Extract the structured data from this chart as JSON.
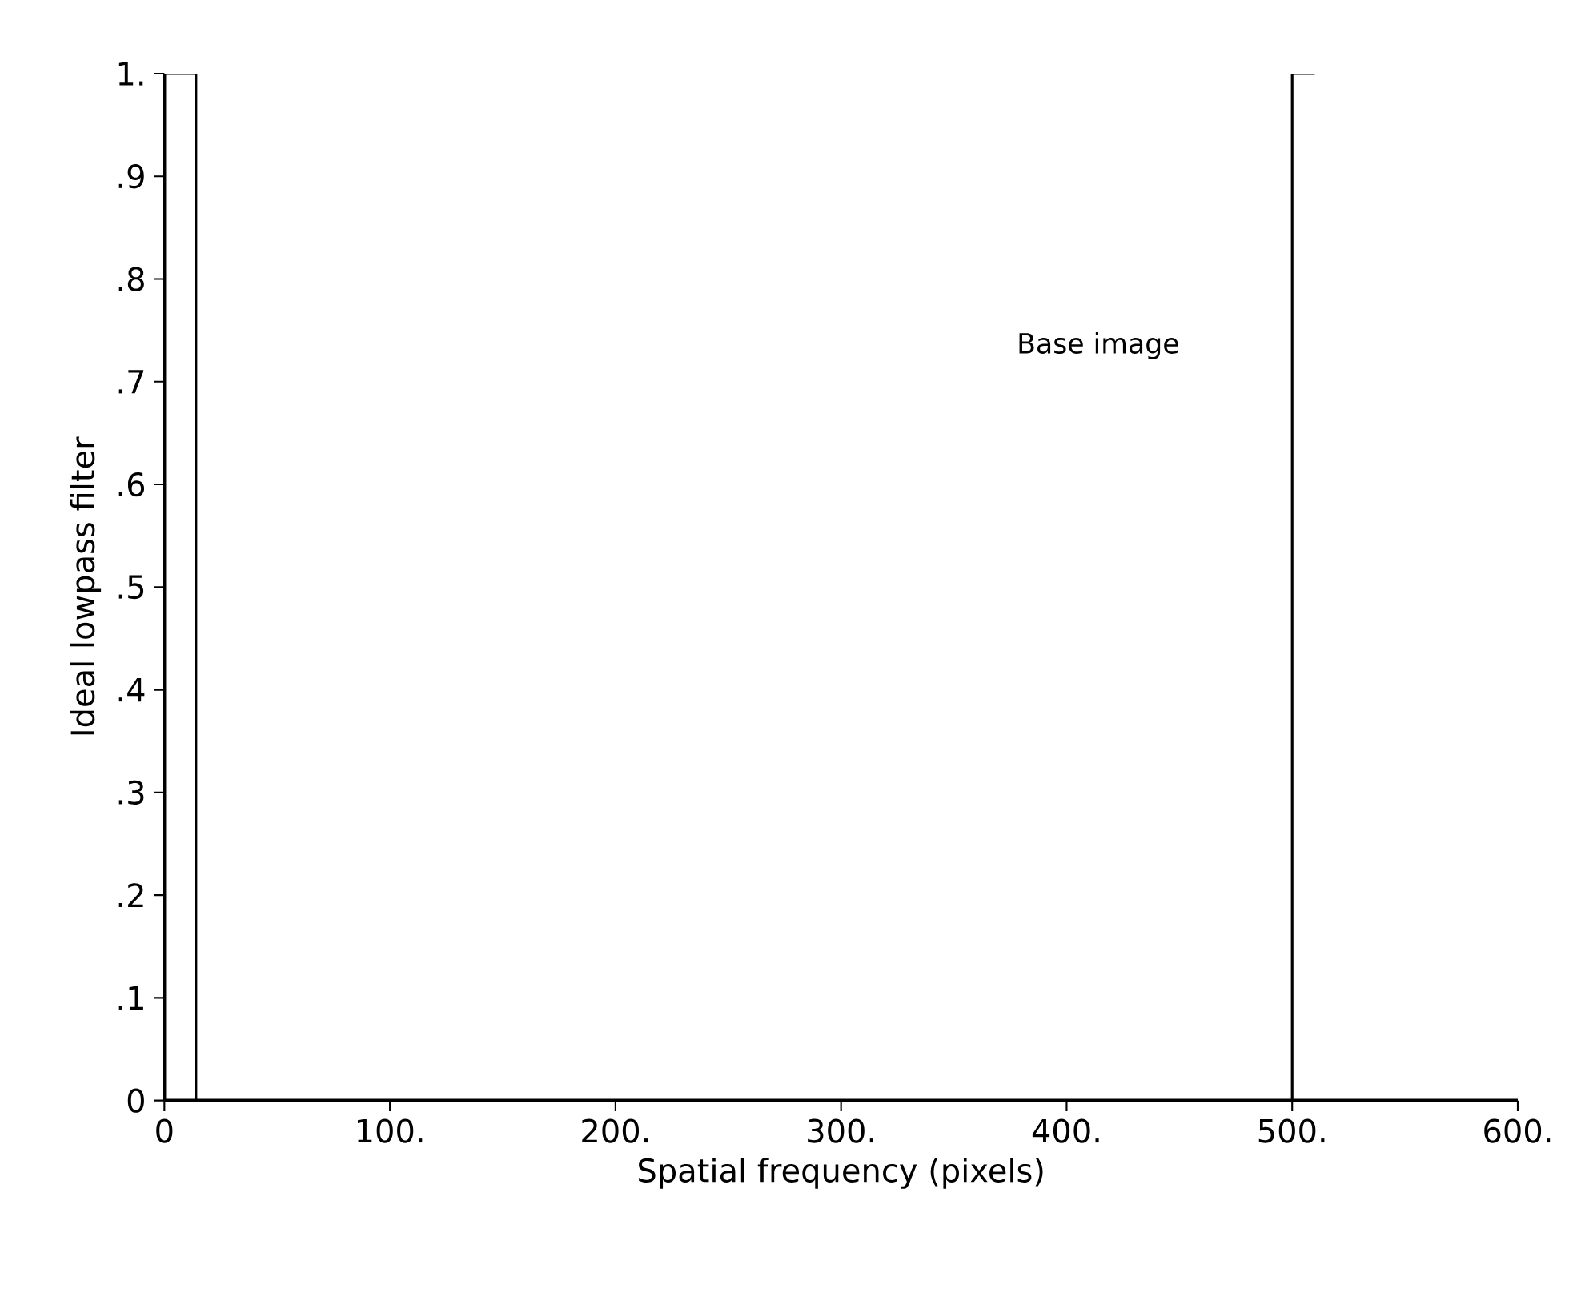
{
  "chart_data": {
    "type": "line",
    "xlabel": "Spatial frequency (pixels)",
    "ylabel": "Ideal lowpass filter",
    "annotations": [
      "Base image"
    ],
    "x": [
      0,
      14,
      14,
      500,
      500,
      510
    ],
    "series": [
      {
        "color": "#000000",
        "values": [
          1,
          1,
          0,
          0,
          1,
          1
        ]
      }
    ],
    "xlim": [
      0,
      600
    ],
    "ylim": [
      0,
      1
    ],
    "xticks": [
      0,
      {
        "value": 100,
        "label": "100."
      },
      {
        "value": 200,
        "label": "200."
      },
      {
        "value": 300,
        "label": "300."
      },
      {
        "value": 400,
        "label": "400."
      },
      {
        "value": 500,
        "label": "500."
      },
      {
        "value": 600,
        "label": "600."
      }
    ],
    "yticks": [
      0,
      {
        "value": 0.1,
        "label": ".1"
      },
      {
        "value": 0.2,
        "label": ".2"
      },
      {
        "value": 0.3,
        "label": ".3"
      },
      {
        "value": 0.4,
        "label": ".4"
      },
      {
        "value": 0.5,
        "label": ".5"
      },
      {
        "value": 0.6,
        "label": ".6"
      },
      {
        "value": 0.7,
        "label": ".7"
      },
      {
        "value": 0.8,
        "label": ".8"
      },
      {
        "value": 0.9,
        "label": ".9"
      },
      {
        "value": 1,
        "label": "1."
      }
    ],
    "marker": "none",
    "line_style": "solid"
  }
}
